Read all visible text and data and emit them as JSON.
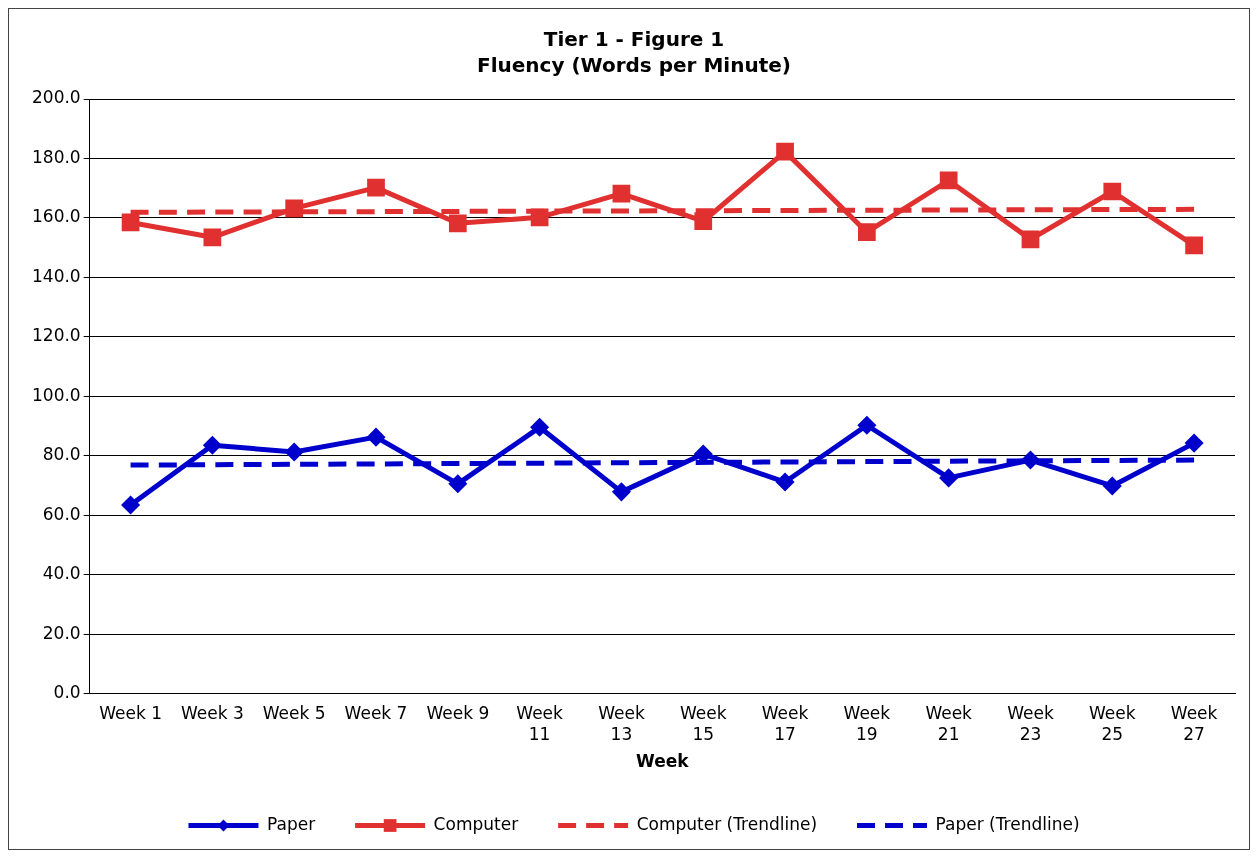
{
  "chart_data": {
    "type": "line",
    "title": "Tier 1 - Figure 1",
    "subtitle": "Fluency (Words per Minute)",
    "xlabel": "Week",
    "categories": [
      "Week 1",
      "Week 3",
      "Week 5",
      "Week 7",
      "Week 9",
      "Week 11",
      "Week 13",
      "Week 15",
      "Week 17",
      "Week 19",
      "Week 21",
      "Week 23",
      "Week 25",
      "Week 27"
    ],
    "series": [
      {
        "name": "Paper",
        "color": "#0000cc",
        "marker": "diamond",
        "line_style": "solid",
        "values": [
          63.5,
          83.6,
          81.3,
          86.3,
          70.6,
          89.6,
          67.9,
          80.6,
          71.2,
          90.3,
          72.6,
          78.6,
          69.9,
          84.3
        ]
      },
      {
        "name": "Computer",
        "color": "#e03030",
        "marker": "square",
        "line_style": "solid",
        "values": [
          158.5,
          153.5,
          163.2,
          170.2,
          158.2,
          160.2,
          168.2,
          158.9,
          182.3,
          155.2,
          172.6,
          152.8,
          168.9,
          150.8
        ]
      },
      {
        "name": "Computer (Trendline)",
        "color": "#e03030",
        "marker": "none",
        "line_style": "dashed",
        "values": [
          161.9,
          null,
          null,
          null,
          null,
          null,
          null,
          null,
          null,
          null,
          null,
          null,
          null,
          162.9
        ]
      },
      {
        "name": "Paper (Trendline)",
        "color": "#0000cc",
        "marker": "none",
        "line_style": "dashed",
        "values": [
          76.9,
          null,
          null,
          null,
          null,
          null,
          null,
          null,
          null,
          null,
          null,
          null,
          null,
          78.6
        ]
      }
    ],
    "ylim": [
      0,
      200
    ],
    "yticks": [
      {
        "value": 0,
        "label": "0.0"
      },
      {
        "value": 20,
        "label": "20.0"
      },
      {
        "value": 40,
        "label": "40.0"
      },
      {
        "value": 60,
        "label": "60.0"
      },
      {
        "value": 80,
        "label": "80.0"
      },
      {
        "value": 100,
        "label": "100.0"
      },
      {
        "value": 120,
        "label": "120.0"
      },
      {
        "value": 140,
        "label": "140.0"
      },
      {
        "value": 160,
        "label": "160.0"
      },
      {
        "value": 180,
        "label": "180.0"
      },
      {
        "value": 200,
        "label": "200.0"
      }
    ],
    "grid": "y",
    "legend": "bottom"
  }
}
